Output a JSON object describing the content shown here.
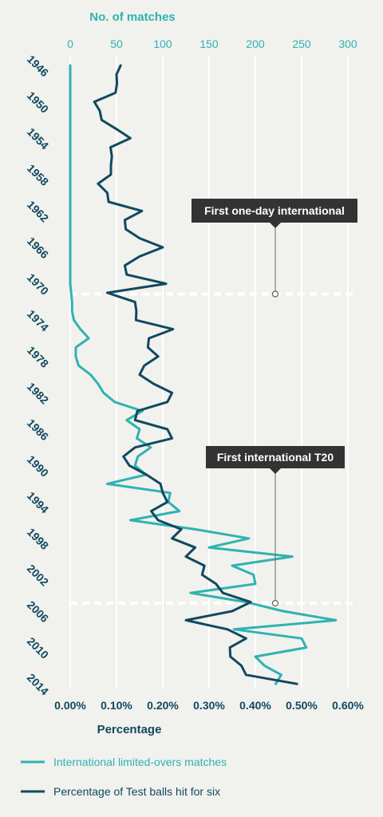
{
  "chart_data": {
    "type": "line",
    "orientation": "vertical-time",
    "top_axis": {
      "title": "No. of matches",
      "ticks": [
        0,
        50,
        100,
        150,
        200,
        250,
        300
      ],
      "range": [
        0,
        300
      ],
      "color": "#2fb3b0"
    },
    "bottom_axis": {
      "title": "Percentage",
      "ticks": [
        "0.00%",
        "0.10%",
        "0.20%",
        "0.30%",
        "0.40%",
        "0.50%",
        "0.60%"
      ],
      "range": [
        0,
        0.6
      ],
      "color": "#10495f"
    },
    "year_axis": {
      "range": [
        1946,
        2015
      ],
      "ticks": [
        1946,
        1950,
        1954,
        1958,
        1962,
        1966,
        1970,
        1974,
        1978,
        1982,
        1986,
        1990,
        1994,
        1998,
        2002,
        2006,
        2010,
        2014
      ]
    },
    "grid": true,
    "series": [
      {
        "name": "International limited-overs matches",
        "axis": "top",
        "color": "#2fb3b0",
        "points": [
          [
            1946,
            0
          ],
          [
            1950,
            0
          ],
          [
            1955,
            0
          ],
          [
            1960,
            0
          ],
          [
            1965,
            0
          ],
          [
            1970,
            0
          ],
          [
            1971,
            1
          ],
          [
            1972,
            2
          ],
          [
            1973,
            2
          ],
          [
            1974,
            4
          ],
          [
            1975,
            11
          ],
          [
            1976,
            20
          ],
          [
            1977,
            6
          ],
          [
            1978,
            6
          ],
          [
            1979,
            9
          ],
          [
            1980,
            22
          ],
          [
            1981,
            30
          ],
          [
            1982,
            36
          ],
          [
            1983,
            48
          ],
          [
            1984,
            78
          ],
          [
            1985,
            61
          ],
          [
            1986,
            75
          ],
          [
            1987,
            72
          ],
          [
            1988,
            87
          ],
          [
            1989,
            73
          ],
          [
            1990,
            70
          ],
          [
            1991,
            82
          ],
          [
            1992,
            40
          ],
          [
            1993,
            108
          ],
          [
            1994,
            106
          ],
          [
            1995,
            118
          ],
          [
            1996,
            65
          ],
          [
            1997,
            135
          ],
          [
            1998,
            193
          ],
          [
            1999,
            150
          ],
          [
            2000,
            240
          ],
          [
            2001,
            175
          ],
          [
            2002,
            198
          ],
          [
            2003,
            200
          ],
          [
            2004,
            130
          ],
          [
            2005,
            190
          ],
          [
            2006,
            230
          ],
          [
            2007,
            287
          ],
          [
            2008,
            177
          ],
          [
            2009,
            250
          ],
          [
            2010,
            255
          ],
          [
            2011,
            200
          ],
          [
            2012,
            210
          ],
          [
            2013,
            228
          ],
          [
            2014,
            222
          ]
        ]
      },
      {
        "name": "Percentage of Test balls hit for six",
        "axis": "bottom",
        "color": "#10495f",
        "points": [
          [
            1946,
            0.109
          ],
          [
            1947,
            0.1
          ],
          [
            1948,
            0.101
          ],
          [
            1949,
            0.098
          ],
          [
            1950,
            0.052
          ],
          [
            1951,
            0.064
          ],
          [
            1952,
            0.068
          ],
          [
            1953,
            0.1
          ],
          [
            1954,
            0.13
          ],
          [
            1955,
            0.087
          ],
          [
            1956,
            0.09
          ],
          [
            1957,
            0.088
          ],
          [
            1958,
            0.088
          ],
          [
            1959,
            0.06
          ],
          [
            1960,
            0.08
          ],
          [
            1961,
            0.083
          ],
          [
            1962,
            0.155
          ],
          [
            1963,
            0.118
          ],
          [
            1964,
            0.12
          ],
          [
            1965,
            0.15
          ],
          [
            1966,
            0.2
          ],
          [
            1967,
            0.15
          ],
          [
            1968,
            0.118
          ],
          [
            1969,
            0.122
          ],
          [
            1970,
            0.207
          ],
          [
            1971,
            0.08
          ],
          [
            1972,
            0.14
          ],
          [
            1973,
            0.143
          ],
          [
            1974,
            0.142
          ],
          [
            1975,
            0.222
          ],
          [
            1976,
            0.17
          ],
          [
            1977,
            0.168
          ],
          [
            1978,
            0.19
          ],
          [
            1979,
            0.16
          ],
          [
            1980,
            0.15
          ],
          [
            1981,
            0.18
          ],
          [
            1982,
            0.22
          ],
          [
            1983,
            0.21
          ],
          [
            1984,
            0.145
          ],
          [
            1985,
            0.14
          ],
          [
            1986,
            0.21
          ],
          [
            1987,
            0.22
          ],
          [
            1988,
            0.14
          ],
          [
            1989,
            0.115
          ],
          [
            1990,
            0.128
          ],
          [
            1991,
            0.165
          ],
          [
            1992,
            0.195
          ],
          [
            1993,
            0.2
          ],
          [
            1994,
            0.21
          ],
          [
            1995,
            0.175
          ],
          [
            1996,
            0.19
          ],
          [
            1997,
            0.24
          ],
          [
            1998,
            0.22
          ],
          [
            1999,
            0.27
          ],
          [
            2000,
            0.25
          ],
          [
            2001,
            0.29
          ],
          [
            2002,
            0.285
          ],
          [
            2003,
            0.315
          ],
          [
            2004,
            0.33
          ],
          [
            2005,
            0.39
          ],
          [
            2006,
            0.35
          ],
          [
            2007,
            0.25
          ],
          [
            2008,
            0.34
          ],
          [
            2009,
            0.38
          ],
          [
            2010,
            0.345
          ],
          [
            2011,
            0.346
          ],
          [
            2012,
            0.37
          ],
          [
            2013,
            0.38
          ],
          [
            2014,
            0.49
          ]
        ]
      }
    ],
    "annotations": [
      {
        "label": "First one-day international",
        "year": 1971
      },
      {
        "label": "First international T20",
        "year": 2005
      }
    ]
  }
}
